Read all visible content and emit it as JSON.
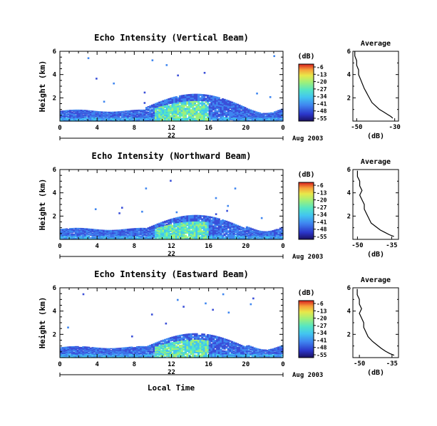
{
  "chart_data": {
    "type": "heatmap",
    "xlabel": "Local Time",
    "ylabel": "Height (km)",
    "x_ticks": [
      "0",
      "4",
      "8",
      "12",
      "16",
      "20",
      "0"
    ],
    "date_label": "22",
    "month_label": "Aug 2003",
    "colorbar": {
      "label": "(dB)",
      "ticks": [
        "-6",
        "-13",
        "-20",
        "-27",
        "-34",
        "-41",
        "-48",
        "-55"
      ],
      "range": [
        -55,
        -6
      ]
    },
    "panels": [
      {
        "title": "Echo Intensity (Vertical Beam)",
        "y_ticks": [
          "6",
          "4",
          "2"
        ],
        "ylim": [
          0,
          6
        ],
        "profile": {
          "title": "Average",
          "xlabel": "(dB)",
          "x_ticks": [
            "-50",
            "-30"
          ],
          "xlim": [
            -52,
            -28
          ],
          "y_ticks": [
            "6",
            "4",
            "2"
          ],
          "points": [
            [
              -51,
              6.0
            ],
            [
              -51,
              5.6
            ],
            [
              -50,
              5.2
            ],
            [
              -50,
              4.8
            ],
            [
              -49,
              4.4
            ],
            [
              -49,
              4.0
            ],
            [
              -48,
              3.6
            ],
            [
              -47,
              3.2
            ],
            [
              -46,
              2.8
            ],
            [
              -45,
              2.5
            ],
            [
              -44,
              2.2
            ],
            [
              -43,
              1.9
            ],
            [
              -42,
              1.6
            ],
            [
              -40,
              1.3
            ],
            [
              -38,
              1.0
            ],
            [
              -36,
              0.8
            ],
            [
              -34,
              0.6
            ],
            [
              -32,
              0.4
            ],
            [
              -31,
              0.25
            ]
          ]
        }
      },
      {
        "title": "Echo Intensity (Northward Beam)",
        "y_ticks": [
          "6",
          "4",
          "2"
        ],
        "ylim": [
          0,
          6
        ],
        "profile": {
          "title": "Average",
          "xlabel": "(dB)",
          "x_ticks": [
            "-50",
            "-35"
          ],
          "xlim": [
            -52,
            -32
          ],
          "y_ticks": [
            "6",
            "4",
            "2"
          ],
          "points": [
            [
              -50,
              5.9
            ],
            [
              -50,
              5.4
            ],
            [
              -49,
              5.0
            ],
            [
              -49,
              4.6
            ],
            [
              -48,
              4.2
            ],
            [
              -49,
              3.8
            ],
            [
              -48,
              3.4
            ],
            [
              -47,
              3.0
            ],
            [
              -47,
              2.6
            ],
            [
              -46,
              2.2
            ],
            [
              -45,
              1.8
            ],
            [
              -44,
              1.4
            ],
            [
              -42,
              1.1
            ],
            [
              -40,
              0.8
            ],
            [
              -38,
              0.6
            ],
            [
              -36,
              0.4
            ],
            [
              -34,
              0.25
            ]
          ]
        }
      },
      {
        "title": "Echo Intensity (Eastward Beam)",
        "y_ticks": [
          "6",
          "4",
          "2"
        ],
        "ylim": [
          0,
          6
        ],
        "profile": {
          "title": "Average",
          "xlabel": "(dB)",
          "x_ticks": [
            "-50",
            "-35"
          ],
          "xlim": [
            -53,
            -32
          ],
          "y_ticks": [
            "6",
            "4",
            "2"
          ],
          "points": [
            [
              -51,
              5.9
            ],
            [
              -51,
              5.4
            ],
            [
              -50,
              5.0
            ],
            [
              -50,
              4.6
            ],
            [
              -49,
              4.2
            ],
            [
              -50,
              3.8
            ],
            [
              -49,
              3.4
            ],
            [
              -48,
              3.0
            ],
            [
              -48,
              2.6
            ],
            [
              -47,
              2.2
            ],
            [
              -46,
              1.8
            ],
            [
              -44,
              1.4
            ],
            [
              -42,
              1.1
            ],
            [
              -40,
              0.8
            ],
            [
              -38,
              0.55
            ],
            [
              -36,
              0.35
            ],
            [
              -34,
              0.2
            ]
          ]
        }
      }
    ],
    "colors": [
      "#2b1d8f",
      "#3a4fd8",
      "#3f86f0",
      "#42c5f0",
      "#55e6c4",
      "#9ef07a",
      "#e8e84a",
      "#f7a23a",
      "#ea4a2a",
      "#c41e1e"
    ]
  }
}
